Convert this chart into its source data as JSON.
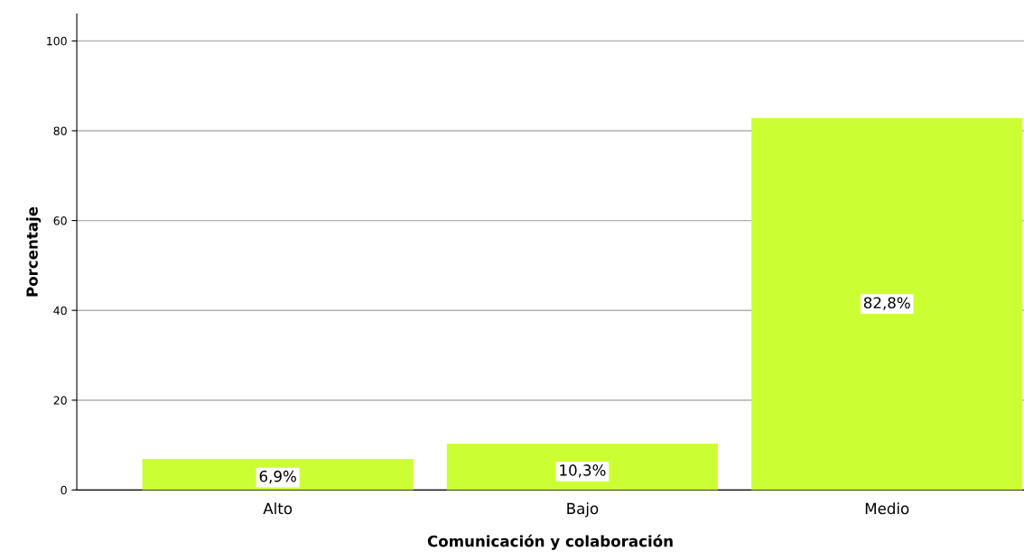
{
  "chart_data": {
    "type": "bar",
    "xlabel": "Comunicación y colaboración",
    "ylabel": "Porcentaje",
    "categories": [
      "Alto",
      "Bajo",
      "Medio"
    ],
    "values": [
      6.9,
      10.3,
      82.8
    ],
    "value_labels": [
      "6,9%",
      "10,3%",
      "82,8%"
    ],
    "color": "#ccff33",
    "ylim": [
      0,
      106
    ],
    "yticks": [
      0,
      20,
      40,
      60,
      80,
      100
    ],
    "grid": "y"
  }
}
